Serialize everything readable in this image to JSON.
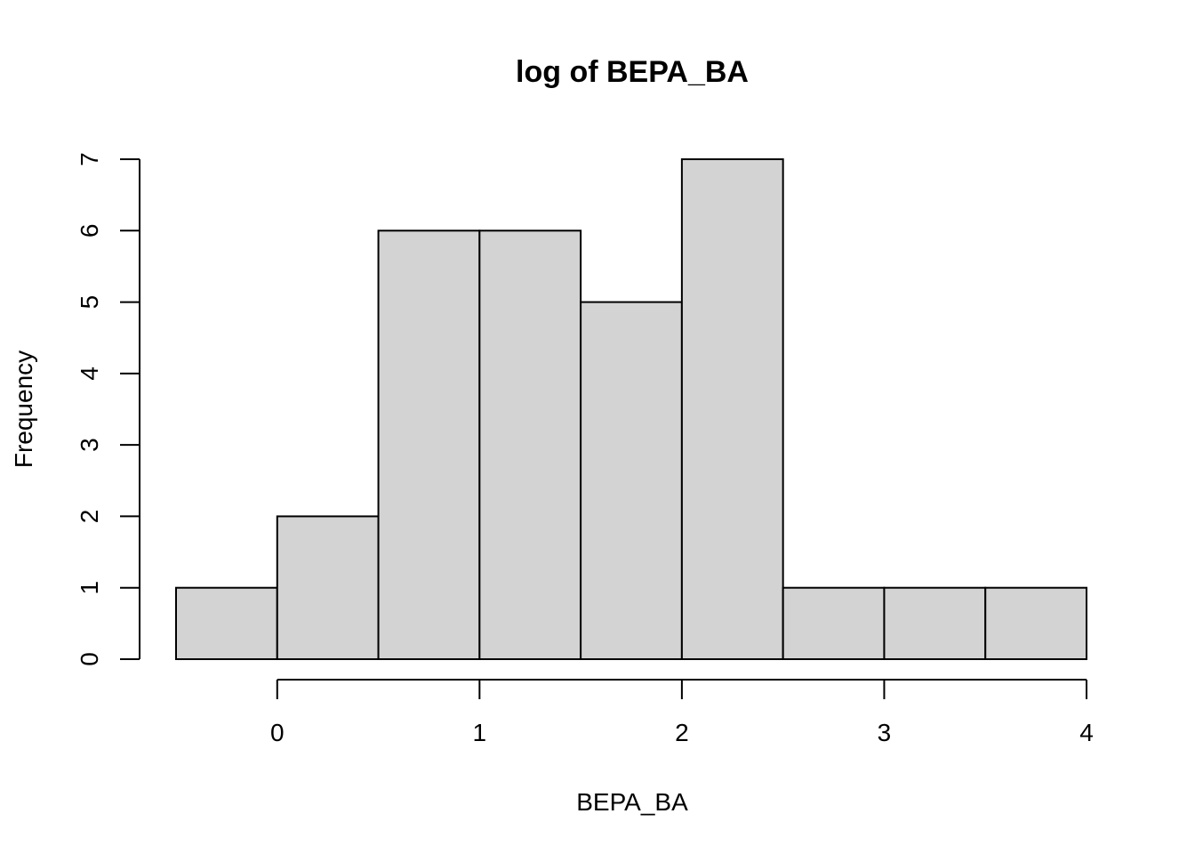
{
  "chart_data": {
    "type": "bar",
    "title": "log of BEPA_BA",
    "xlabel": "BEPA_BA",
    "ylabel": "Frequency",
    "bins": [
      {
        "x0": -0.5,
        "x1": 0.0,
        "count": 1
      },
      {
        "x0": 0.0,
        "x1": 0.5,
        "count": 2
      },
      {
        "x0": 0.5,
        "x1": 1.0,
        "count": 6
      },
      {
        "x0": 1.0,
        "x1": 1.5,
        "count": 6
      },
      {
        "x0": 1.5,
        "x1": 2.0,
        "count": 5
      },
      {
        "x0": 2.0,
        "x1": 2.5,
        "count": 7
      },
      {
        "x0": 2.5,
        "x1": 3.0,
        "count": 1
      },
      {
        "x0": 3.0,
        "x1": 3.5,
        "count": 1
      },
      {
        "x0": 3.5,
        "x1": 4.0,
        "count": 1
      }
    ],
    "xticks": [
      0,
      1,
      2,
      3,
      4
    ],
    "yticks": [
      0,
      1,
      2,
      3,
      4,
      5,
      6,
      7
    ],
    "xlim": [
      -0.5,
      4.0
    ],
    "ylim": [
      0,
      7
    ],
    "bar_color": "#d3d3d3",
    "grid": false
  }
}
